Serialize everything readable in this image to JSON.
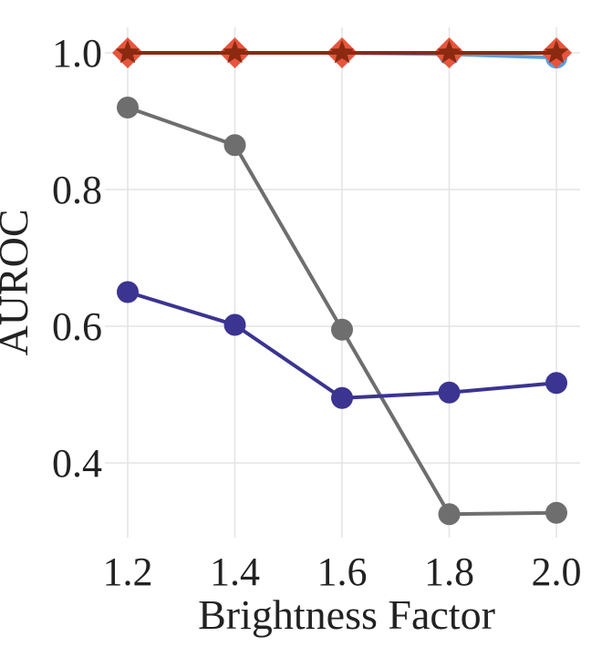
{
  "chart_data": {
    "type": "line",
    "title": "",
    "xlabel": "Brightness Factor",
    "ylabel": "AUROC",
    "x": [
      1.2,
      1.4,
      1.6,
      1.8,
      2.0
    ],
    "x_tick_labels": [
      "1.2",
      "1.4",
      "1.6",
      "1.8",
      "2.0"
    ],
    "y_ticks": [
      0.4,
      0.6,
      0.8,
      1.0
    ],
    "y_tick_labels": [
      "0.4",
      "0.6",
      "0.8",
      "1.0"
    ],
    "xlim": [
      1.2,
      2.0
    ],
    "ylim": [
      0.3,
      1.05
    ],
    "grid": true,
    "legend": "none",
    "series": [
      {
        "values": [
          0.92,
          0.865,
          0.595,
          0.325,
          0.327
        ],
        "color": "#6e6e6e",
        "marker": "circle"
      },
      {
        "values": [
          0.65,
          0.602,
          0.495,
          0.503,
          0.517
        ],
        "color": "#3b3491",
        "marker": "circle"
      },
      {
        "values": [
          1.0,
          1.0,
          1.0,
          0.998,
          0.993
        ],
        "color": "#5aa0e0",
        "marker": "circle"
      },
      {
        "values": [
          1.0,
          1.0,
          1.0,
          1.0,
          1.0
        ],
        "color": "#e8b84a",
        "marker": "circle"
      },
      {
        "values": [
          1.0,
          1.0,
          1.0,
          1.0,
          1.0
        ],
        "color": "#e8543c",
        "marker": "diamond"
      },
      {
        "values": [
          1.0,
          1.0,
          1.0,
          1.0,
          1.0
        ],
        "color": "#8b2a10",
        "marker": "star"
      }
    ]
  }
}
